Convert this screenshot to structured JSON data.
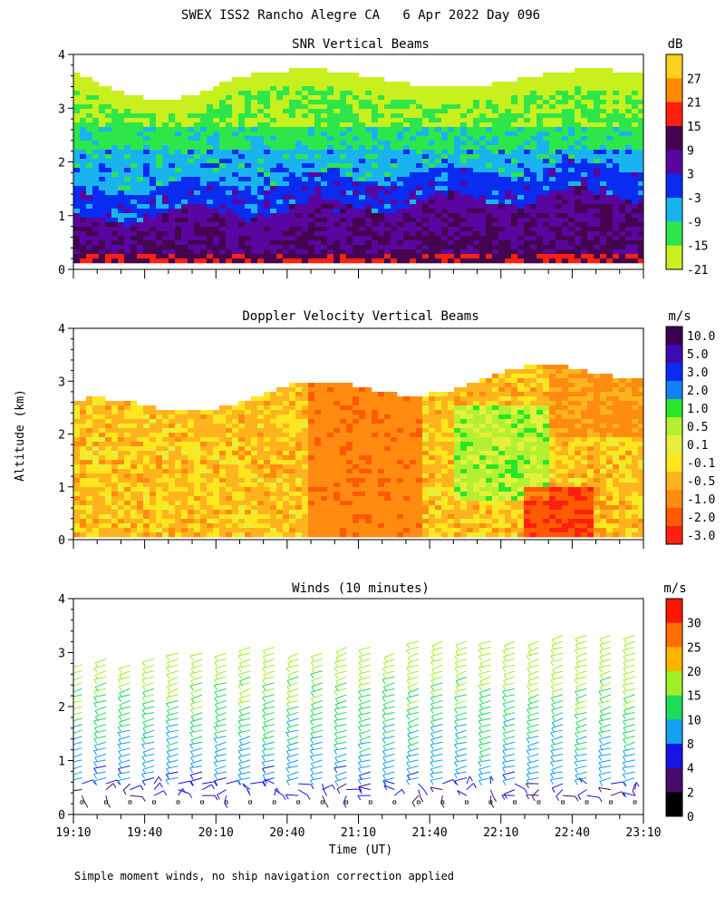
{
  "page_title": "SWEX ISS2 Rancho Alegre CA   6 Apr 2022 Day 096",
  "footnote": "Simple moment winds, no ship navigation correction applied",
  "colors": {
    "snr": [
      "#c8f01e",
      "#2ee64a",
      "#19b4f0",
      "#0a2cf0",
      "#5a05a0",
      "#44044f",
      "#ff2010",
      "#ff8c00",
      "#ffd21e"
    ],
    "vel": [
      "#ff2010",
      "#ff5a00",
      "#ff8c10",
      "#ffb41e",
      "#ffe61e",
      "#e6f03c",
      "#b4f032",
      "#28e628",
      "#1480ff",
      "#0a2cf0",
      "#3c0ab4",
      "#3c0050"
    ],
    "wind": [
      "#000000",
      "#4a0a6e",
      "#1414e6",
      "#14a0f0",
      "#1edc5a",
      "#a0f028",
      "#ffb400",
      "#ff6e00",
      "#ff1400"
    ]
  },
  "chart_data": [
    {
      "type": "heatmap",
      "title": "SNR Vertical Beams",
      "ylabel": "",
      "units": "dB",
      "ylim": [
        0,
        4
      ],
      "y_ticks": [
        "0",
        "1",
        "2",
        "3",
        "4"
      ],
      "colorbar_labels": [
        "27",
        "21",
        "15",
        "9",
        "3",
        "-3",
        "-9",
        "-15",
        "-21"
      ]
    },
    {
      "type": "heatmap",
      "title": "Doppler Velocity Vertical Beams",
      "ylabel": "Altitude (km)",
      "units": "m/s",
      "ylim": [
        0,
        4
      ],
      "y_ticks": [
        "0",
        "1",
        "2",
        "3",
        "4"
      ],
      "colorbar_labels": [
        "10.0",
        "5.0",
        "3.0",
        "2.0",
        "1.0",
        "0.5",
        "0.1",
        "-0.1",
        "-0.5",
        "-1.0",
        "-2.0",
        "-3.0"
      ]
    },
    {
      "type": "scatter",
      "title": "Winds (10 minutes)",
      "xlabel": "Time (UT)",
      "units": "m/s",
      "ylim": [
        0,
        4
      ],
      "y_ticks": [
        "0",
        "1",
        "2",
        "3",
        "4"
      ],
      "x_ticks": [
        "19:10",
        "19:40",
        "20:10",
        "20:40",
        "21:10",
        "21:40",
        "22:10",
        "22:40",
        "23:10"
      ],
      "colorbar_labels": [
        "30",
        "25",
        "20",
        "15",
        "10",
        "8",
        "4",
        "2",
        "0"
      ],
      "profile_count": 24
    }
  ]
}
